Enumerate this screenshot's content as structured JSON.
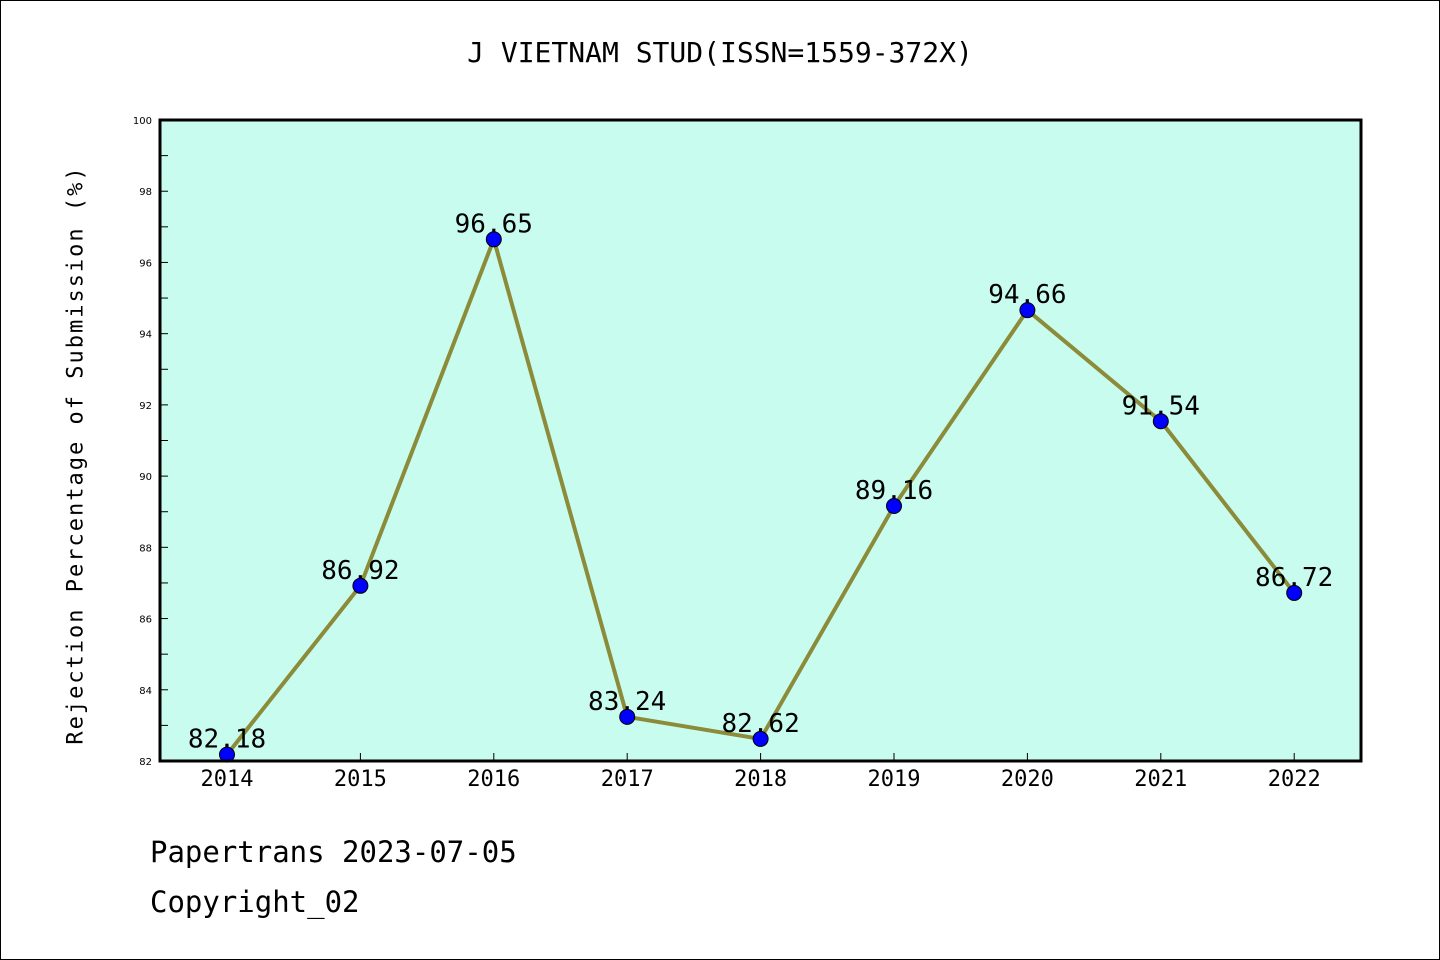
{
  "chart_data": {
    "type": "line",
    "title": "J VIETNAM STUD(ISSN=1559-372X)",
    "xlabel": "",
    "ylabel": "Rejection Percentage of Submission (%)",
    "categories": [
      "2014",
      "2015",
      "2016",
      "2017",
      "2018",
      "2019",
      "2020",
      "2021",
      "2022"
    ],
    "series": [
      {
        "values": [
          82.18,
          86.92,
          96.65,
          83.24,
          82.62,
          89.16,
          94.66,
          91.54,
          86.72
        ],
        "data_labels": [
          "82.18",
          "86.92",
          "96.65",
          "83.24",
          "82.62",
          "89.16",
          "94.66",
          "91.54",
          "86.72"
        ]
      }
    ],
    "ylim": [
      82,
      100
    ],
    "yticks": [
      "82",
      "84",
      "86",
      "88",
      "90",
      "92",
      "94",
      "96",
      "98",
      "100"
    ],
    "grid": false,
    "legend": "none",
    "colors": {
      "plot_background": "#c8fcee",
      "line": "#8b8b3a",
      "marker": "#0000ff"
    }
  },
  "footer": {
    "line1": "Papertrans 2023-07-05",
    "line2": "Copyright_02"
  }
}
